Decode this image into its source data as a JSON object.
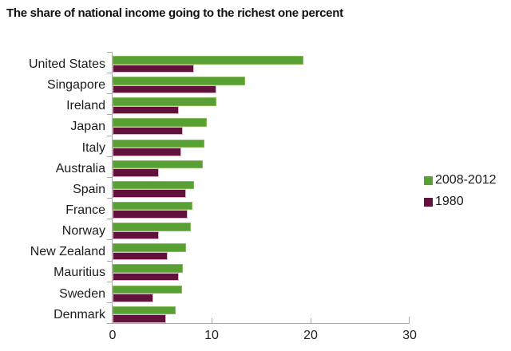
{
  "chart_data": {
    "type": "bar",
    "orientation": "horizontal",
    "title": "The share of national income going to the richest one percent",
    "categories": [
      "United States",
      "Singapore",
      "Ireland",
      "Japan",
      "Italy",
      "Australia",
      "Spain",
      "France",
      "Norway",
      "New Zealand",
      "Mauritius",
      "Sweden",
      "Denmark"
    ],
    "series": [
      {
        "name": "2008-2012",
        "color": "#58a033",
        "values": [
          19.3,
          13.4,
          10.5,
          9.5,
          9.3,
          9.1,
          8.2,
          8.1,
          7.9,
          7.4,
          7.1,
          7.0,
          6.4
        ]
      },
      {
        "name": "1980",
        "color": "#63103c",
        "values": [
          8.2,
          10.5,
          6.7,
          7.1,
          6.9,
          4.7,
          7.4,
          7.6,
          4.7,
          5.6,
          6.7,
          4.1,
          5.4
        ]
      }
    ],
    "xlabel": "",
    "ylabel": "",
    "xlim": [
      0,
      30
    ],
    "x_ticks": [
      0,
      10,
      20,
      30
    ],
    "grid": false,
    "legend_position": "right"
  },
  "legend": {
    "items": [
      {
        "label": "2008-2012",
        "color": "#58a033"
      },
      {
        "label": "1980",
        "color": "#63103c"
      }
    ]
  },
  "colors": {
    "axis": "#a9a9a9",
    "text": "#1c1c1c",
    "background": "#ffffff"
  }
}
